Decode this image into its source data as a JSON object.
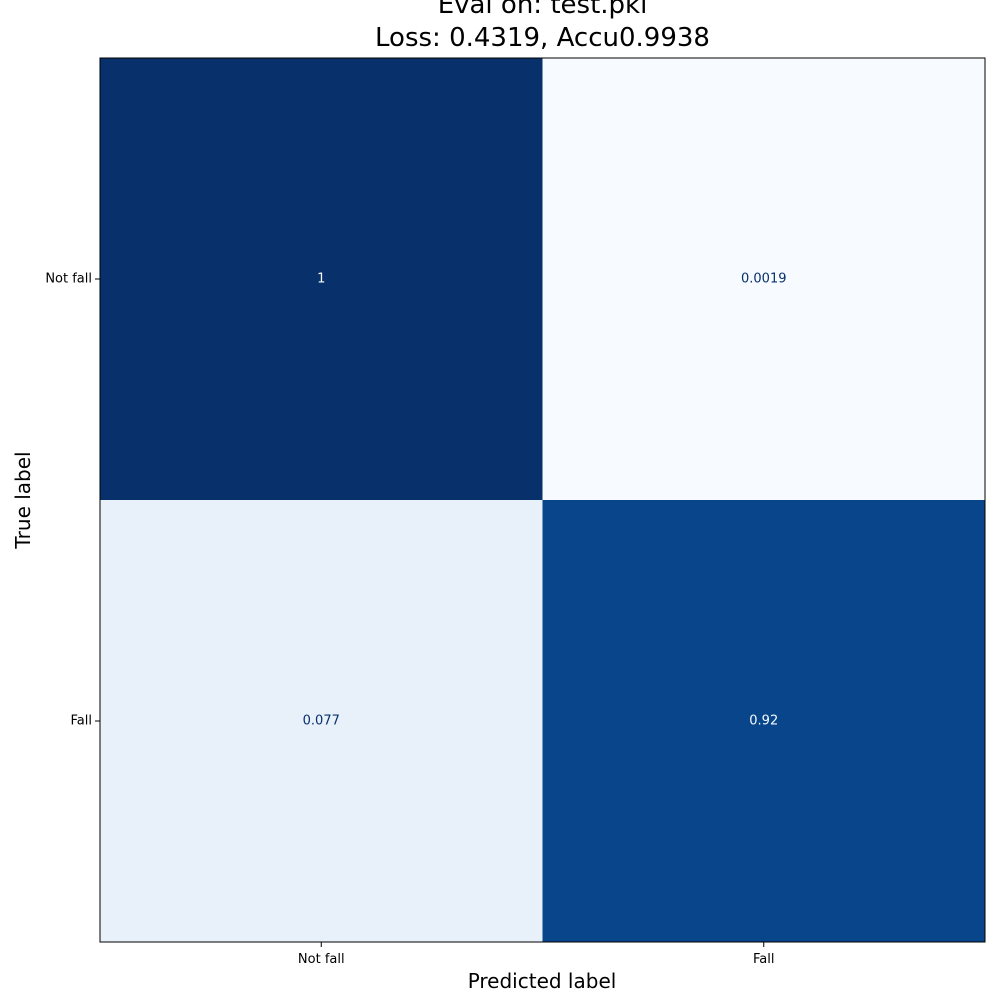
{
  "chart_data": {
    "type": "heatmap",
    "title_lines": [
      "Eval on: test.pkl",
      "Loss: 0.4319, Accu0.9938"
    ],
    "xlabel": "Predicted label",
    "ylabel": "True label",
    "x_categories": [
      "Not fall",
      "Fall"
    ],
    "y_categories": [
      "Not fall",
      "Fall"
    ],
    "values": [
      [
        1,
        0.0019
      ],
      [
        0.077,
        0.92
      ]
    ],
    "value_labels": [
      [
        "1",
        "0.0019"
      ],
      [
        "0.077",
        "0.92"
      ]
    ],
    "colormap": "Blues",
    "vmin": 0,
    "vmax": 1,
    "grid": false,
    "colorbar": false
  }
}
